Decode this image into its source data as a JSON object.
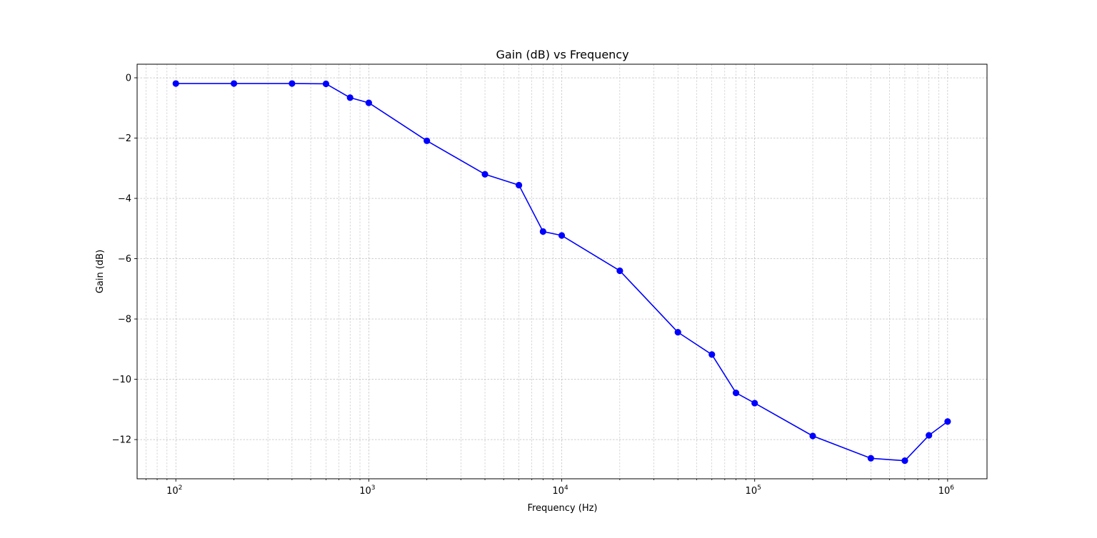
{
  "chart_data": {
    "type": "line",
    "title": "Gain (dB) vs Frequency",
    "xlabel": "Frequency (Hz)",
    "ylabel": "Gain (dB)",
    "x_scale": "log",
    "xlim": [
      63,
      1600000
    ],
    "ylim": [
      -13.3,
      0.45
    ],
    "grid": true,
    "x_tick_labels": [
      {
        "base": "10",
        "exp": "2",
        "value": 100
      },
      {
        "base": "10",
        "exp": "3",
        "value": 1000
      },
      {
        "base": "10",
        "exp": "4",
        "value": 10000
      },
      {
        "base": "10",
        "exp": "5",
        "value": 100000
      },
      {
        "base": "10",
        "exp": "6",
        "value": 1000000
      }
    ],
    "y_ticks": [
      0,
      -2,
      -4,
      -6,
      -8,
      -10,
      -12
    ],
    "y_tick_labels": [
      "0",
      "−2",
      "−4",
      "−6",
      "−8",
      "−10",
      "−12"
    ],
    "series": [
      {
        "color": "#0000ff",
        "marker": "circle",
        "x": [
          100,
          200,
          400,
          600,
          800,
          1000,
          2000,
          4000,
          6000,
          8000,
          10000,
          20000,
          40000,
          60000,
          80000,
          100000,
          200000,
          400000,
          600000,
          800000,
          1000000
        ],
        "y": [
          -0.19,
          -0.19,
          -0.19,
          -0.2,
          -0.66,
          -0.83,
          -2.09,
          -3.2,
          -3.56,
          -5.1,
          -5.23,
          -6.4,
          -8.44,
          -9.18,
          -10.45,
          -10.79,
          -11.88,
          -12.62,
          -12.7,
          -11.86,
          -11.4
        ]
      }
    ]
  }
}
